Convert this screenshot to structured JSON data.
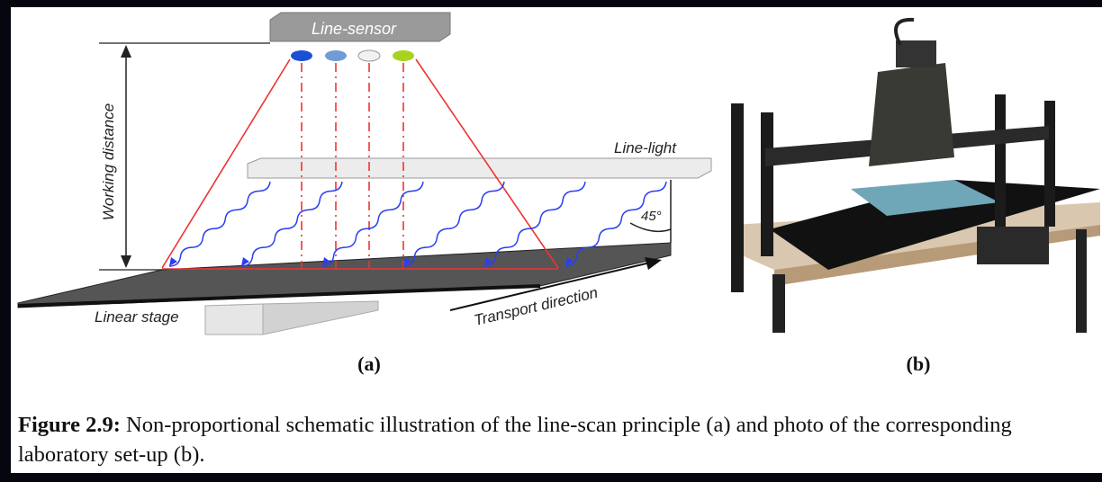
{
  "figure": {
    "panel_a": {
      "labels": {
        "line_sensor": "Line-sensor",
        "working_distance": "Working distance",
        "line_light": "Line-light",
        "angle": "45°",
        "linear_stage": "Linear stage",
        "transport_direction": "Transport direction"
      },
      "sublabel": "(a)"
    },
    "panel_b": {
      "sublabel": "(b)"
    },
    "caption": {
      "label": "Figure 2.9:",
      "text": "Non-proportional schematic illustration of the line-scan principle (a) and photo of the corresponding laboratory set-up (b)."
    }
  }
}
